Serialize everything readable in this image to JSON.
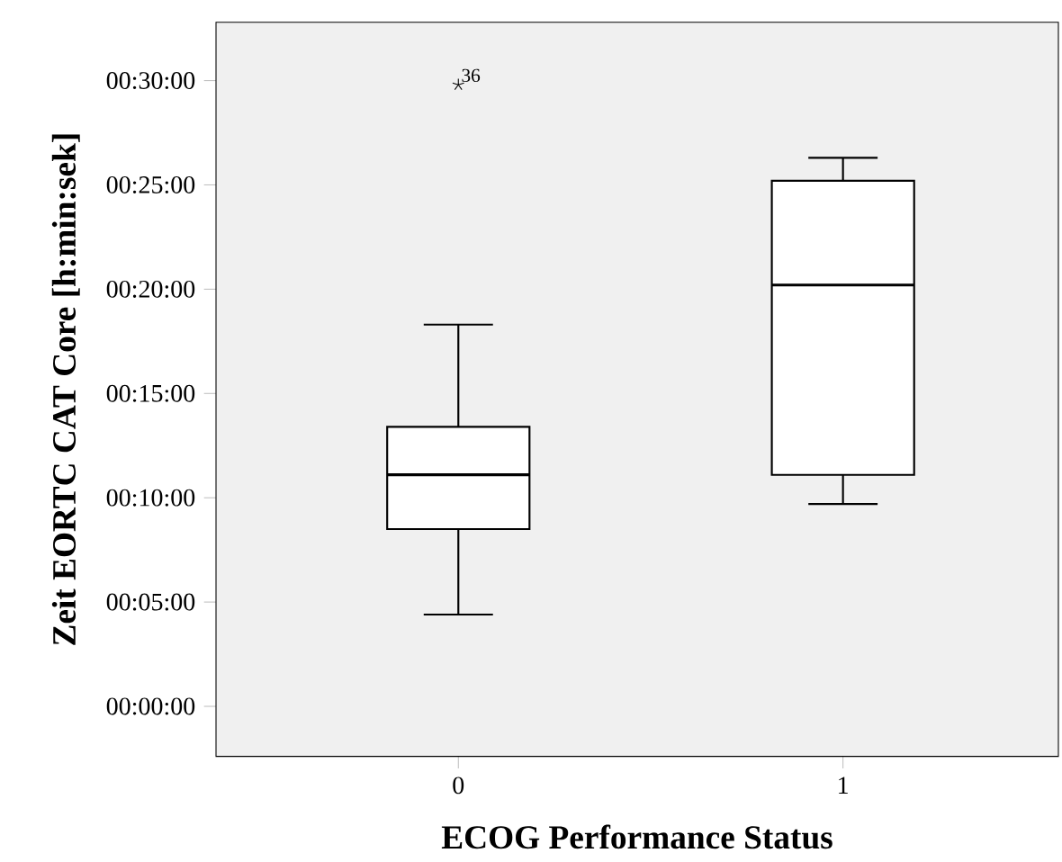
{
  "chart_data": {
    "type": "box",
    "xlabel": "ECOG Performance Status",
    "ylabel": "Zeit EORTC CAT Core [h:min:sek]",
    "categories": [
      "0",
      "1"
    ],
    "boxes": [
      {
        "low": 4.4,
        "q1": 8.5,
        "median": 11.1,
        "q3": 13.4,
        "high": 18.3,
        "outliers": [
          29.8
        ]
      },
      {
        "low": 9.7,
        "q1": 11.1,
        "median": 20.2,
        "q3": 25.2,
        "high": 26.3
      }
    ],
    "ylim": [
      -2.4,
      32.8
    ],
    "yticks": [
      {
        "value": 0,
        "label": "00:00:00"
      },
      {
        "value": 5,
        "label": "00:05:00"
      },
      {
        "value": 10,
        "label": "00:10:00"
      },
      {
        "value": 15,
        "label": "00:15:00"
      },
      {
        "value": 20,
        "label": "00:20:00"
      },
      {
        "value": 25,
        "label": "00:25:00"
      },
      {
        "value": 30,
        "label": "00:30:00"
      }
    ],
    "annotations": [
      "36"
    ]
  }
}
